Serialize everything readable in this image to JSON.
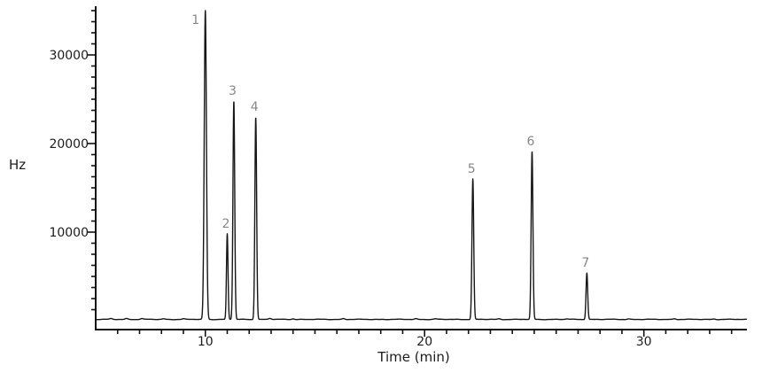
{
  "chart_data": {
    "type": "line",
    "title": "",
    "xlabel": "Time (min)",
    "ylabel": "Hz",
    "x_range": [
      5,
      34.7
    ],
    "y_range": [
      -1000,
      35500
    ],
    "x_major_ticks": [
      10,
      20,
      30
    ],
    "x_minor_tick_interval": 1,
    "y_major_ticks": [
      10000,
      20000,
      30000
    ],
    "y_minor_tick_interval": 1250,
    "grid": false,
    "legend_position": "none",
    "baseline_hz": 150,
    "peaks": [
      {
        "label": "1",
        "time_min": 10.0,
        "height_hz": 35000,
        "sigma_min": 0.05
      },
      {
        "label": "2",
        "time_min": 11.0,
        "height_hz": 9800,
        "sigma_min": 0.035
      },
      {
        "label": "3",
        "time_min": 11.3,
        "height_hz": 24800,
        "sigma_min": 0.04
      },
      {
        "label": "4",
        "time_min": 12.3,
        "height_hz": 23000,
        "sigma_min": 0.04
      },
      {
        "label": "5",
        "time_min": 22.2,
        "height_hz": 16000,
        "sigma_min": 0.04
      },
      {
        "label": "6",
        "time_min": 24.9,
        "height_hz": 19100,
        "sigma_min": 0.04
      },
      {
        "label": "7",
        "time_min": 27.4,
        "height_hz": 5400,
        "sigma_min": 0.038
      }
    ],
    "noise_blips": [
      {
        "time_min": 5.7,
        "amp_hz": 80
      },
      {
        "time_min": 6.4,
        "amp_hz": 100
      },
      {
        "time_min": 7.1,
        "amp_hz": 90
      },
      {
        "time_min": 8.1,
        "amp_hz": 70
      },
      {
        "time_min": 9.0,
        "amp_hz": 60
      },
      {
        "time_min": 12.95,
        "amp_hz": 110
      },
      {
        "time_min": 14.0,
        "amp_hz": 70
      },
      {
        "time_min": 16.3,
        "amp_hz": 90
      },
      {
        "time_min": 19.6,
        "amp_hz": 80
      },
      {
        "time_min": 20.5,
        "amp_hz": 60
      },
      {
        "time_min": 23.4,
        "amp_hz": 70
      },
      {
        "time_min": 26.5,
        "amp_hz": 50
      },
      {
        "time_min": 29.3,
        "amp_hz": 60
      },
      {
        "time_min": 31.4,
        "amp_hz": 80
      },
      {
        "time_min": 33.2,
        "amp_hz": 50
      }
    ],
    "colors": {
      "trace": "#161616",
      "axis": "#111111",
      "tick_label": "#1c1c1c",
      "peak_label": "#878787",
      "background": "#ffffff"
    }
  }
}
